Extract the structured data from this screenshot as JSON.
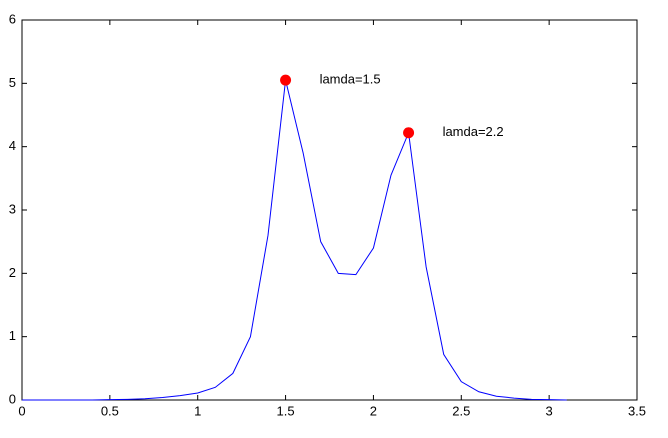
{
  "chart_data": {
    "type": "line",
    "x": [
      0,
      0.1,
      0.2,
      0.3,
      0.4,
      0.5,
      0.6,
      0.7,
      0.8,
      0.9,
      1.0,
      1.1,
      1.2,
      1.3,
      1.4,
      1.5,
      1.6,
      1.7,
      1.8,
      1.9,
      2.0,
      2.1,
      2.2,
      2.3,
      2.4,
      2.5,
      2.6,
      2.7,
      2.8,
      2.9,
      3.0,
      3.1
    ],
    "series": [
      {
        "color": "#0000ff",
        "values": [
          0,
          0,
          0,
          0,
          0,
          0.005,
          0.01,
          0.02,
          0.04,
          0.07,
          0.11,
          0.2,
          0.42,
          1.0,
          2.6,
          5.05,
          3.9,
          2.5,
          2.0,
          1.98,
          2.4,
          3.55,
          4.22,
          2.1,
          0.72,
          0.29,
          0.13,
          0.06,
          0.03,
          0.01,
          0.005,
          0
        ]
      }
    ],
    "markers": {
      "color": "#ff0000",
      "x": [
        1.5,
        2.2
      ],
      "y": [
        5.05,
        4.22
      ],
      "labels": [
        "lamda=1.5",
        "lamda=2.2"
      ]
    },
    "xlim": [
      0,
      3.5
    ],
    "xticks": [
      0,
      0.5,
      1,
      1.5,
      2,
      2.5,
      3,
      3.5
    ],
    "ylim": [
      0,
      6
    ],
    "yticks": [
      0,
      1,
      2,
      3,
      4,
      5,
      6
    ],
    "grid": false
  }
}
